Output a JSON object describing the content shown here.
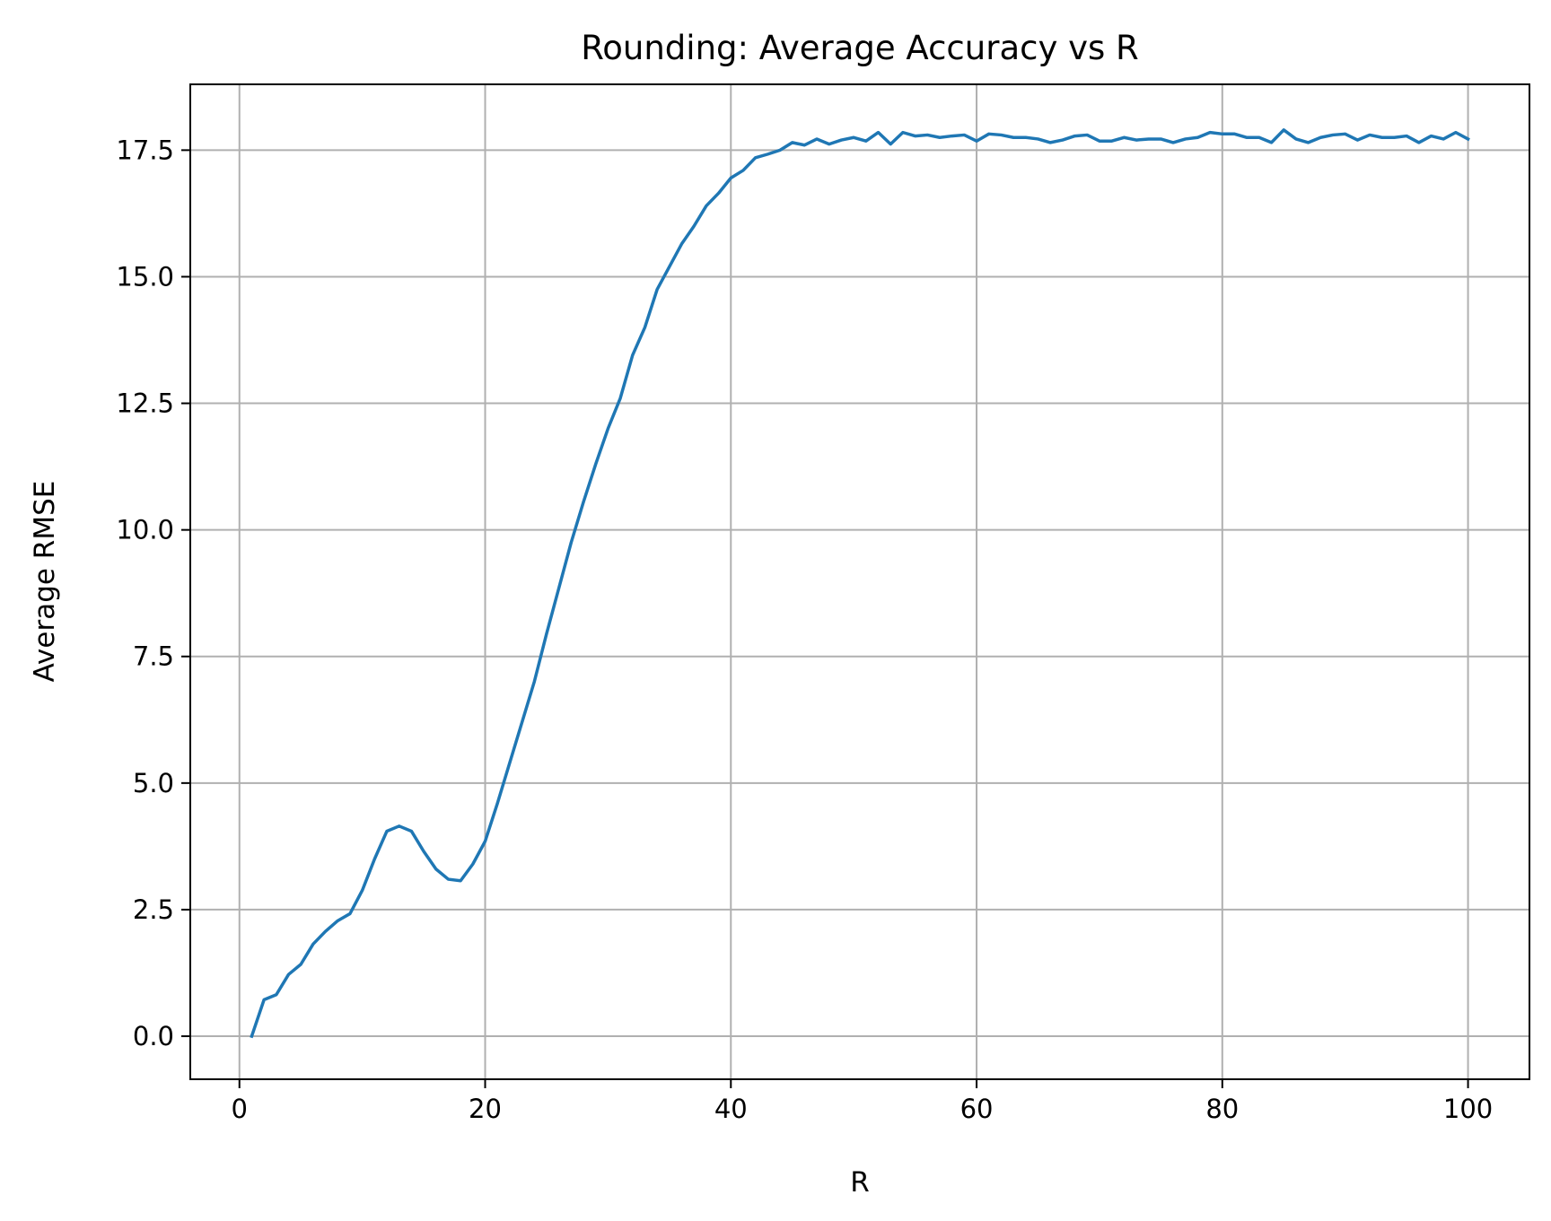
{
  "chart_data": {
    "type": "line",
    "title": "Rounding: Average Accuracy vs R",
    "xlabel": "R",
    "ylabel": "Average RMSE",
    "xlim": [
      -4,
      105
    ],
    "ylim": [
      -0.85,
      18.8
    ],
    "xticks": [
      0,
      20,
      40,
      60,
      80,
      100
    ],
    "xtick_labels": [
      "0",
      "20",
      "40",
      "60",
      "80",
      "100"
    ],
    "yticks": [
      0,
      2.5,
      5,
      7.5,
      10,
      12.5,
      15,
      17.5
    ],
    "ytick_labels": [
      "0.0",
      "2.5",
      "5.0",
      "7.5",
      "10.0",
      "12.5",
      "15.0",
      "17.5"
    ],
    "grid": true,
    "colors": {
      "line": "#1f77b4",
      "grid": "#b0b0b0",
      "axes": "#000000"
    },
    "series": [
      {
        "x": [
          1,
          2,
          3,
          4,
          5,
          6,
          7,
          8,
          9,
          10,
          11,
          12,
          13,
          14,
          15,
          16,
          17,
          18,
          19,
          20,
          21,
          22,
          23,
          24,
          25,
          26,
          27,
          28,
          29,
          30,
          31,
          32,
          33,
          34,
          35,
          36,
          37,
          38,
          39,
          40,
          41,
          42,
          43,
          44,
          45,
          46,
          47,
          48,
          49,
          50,
          51,
          52,
          53,
          54,
          55,
          56,
          57,
          58,
          59,
          60,
          61,
          62,
          63,
          64,
          65,
          66,
          67,
          68,
          69,
          70,
          71,
          72,
          73,
          74,
          75,
          76,
          77,
          78,
          79,
          80,
          81,
          82,
          83,
          84,
          85,
          86,
          87,
          88,
          89,
          90,
          91,
          92,
          93,
          94,
          95,
          96,
          97,
          98,
          99,
          100
        ],
        "y": [
          0.0,
          0.72,
          0.82,
          1.22,
          1.42,
          1.82,
          2.07,
          2.28,
          2.42,
          2.88,
          3.5,
          4.05,
          4.15,
          4.05,
          3.65,
          3.3,
          3.1,
          3.07,
          3.4,
          3.85,
          4.6,
          5.4,
          6.2,
          7.0,
          7.95,
          8.85,
          9.75,
          10.55,
          11.3,
          12.0,
          12.6,
          13.45,
          14.0,
          14.75,
          15.2,
          15.65,
          16.0,
          16.4,
          16.65,
          16.95,
          17.1,
          17.35,
          17.42,
          17.5,
          17.65,
          17.6,
          17.72,
          17.62,
          17.7,
          17.75,
          17.68,
          17.85,
          17.62,
          17.85,
          17.78,
          17.8,
          17.75,
          17.78,
          17.8,
          17.68,
          17.82,
          17.8,
          17.75,
          17.75,
          17.72,
          17.65,
          17.7,
          17.78,
          17.8,
          17.68,
          17.68,
          17.75,
          17.7,
          17.72,
          17.72,
          17.65,
          17.72,
          17.75,
          17.85,
          17.82,
          17.82,
          17.75,
          17.75,
          17.65,
          17.9,
          17.72,
          17.65,
          17.75,
          17.8,
          17.82,
          17.7,
          17.8,
          17.75,
          17.75,
          17.78,
          17.65,
          17.78,
          17.72,
          17.85,
          17.72
        ]
      }
    ]
  }
}
